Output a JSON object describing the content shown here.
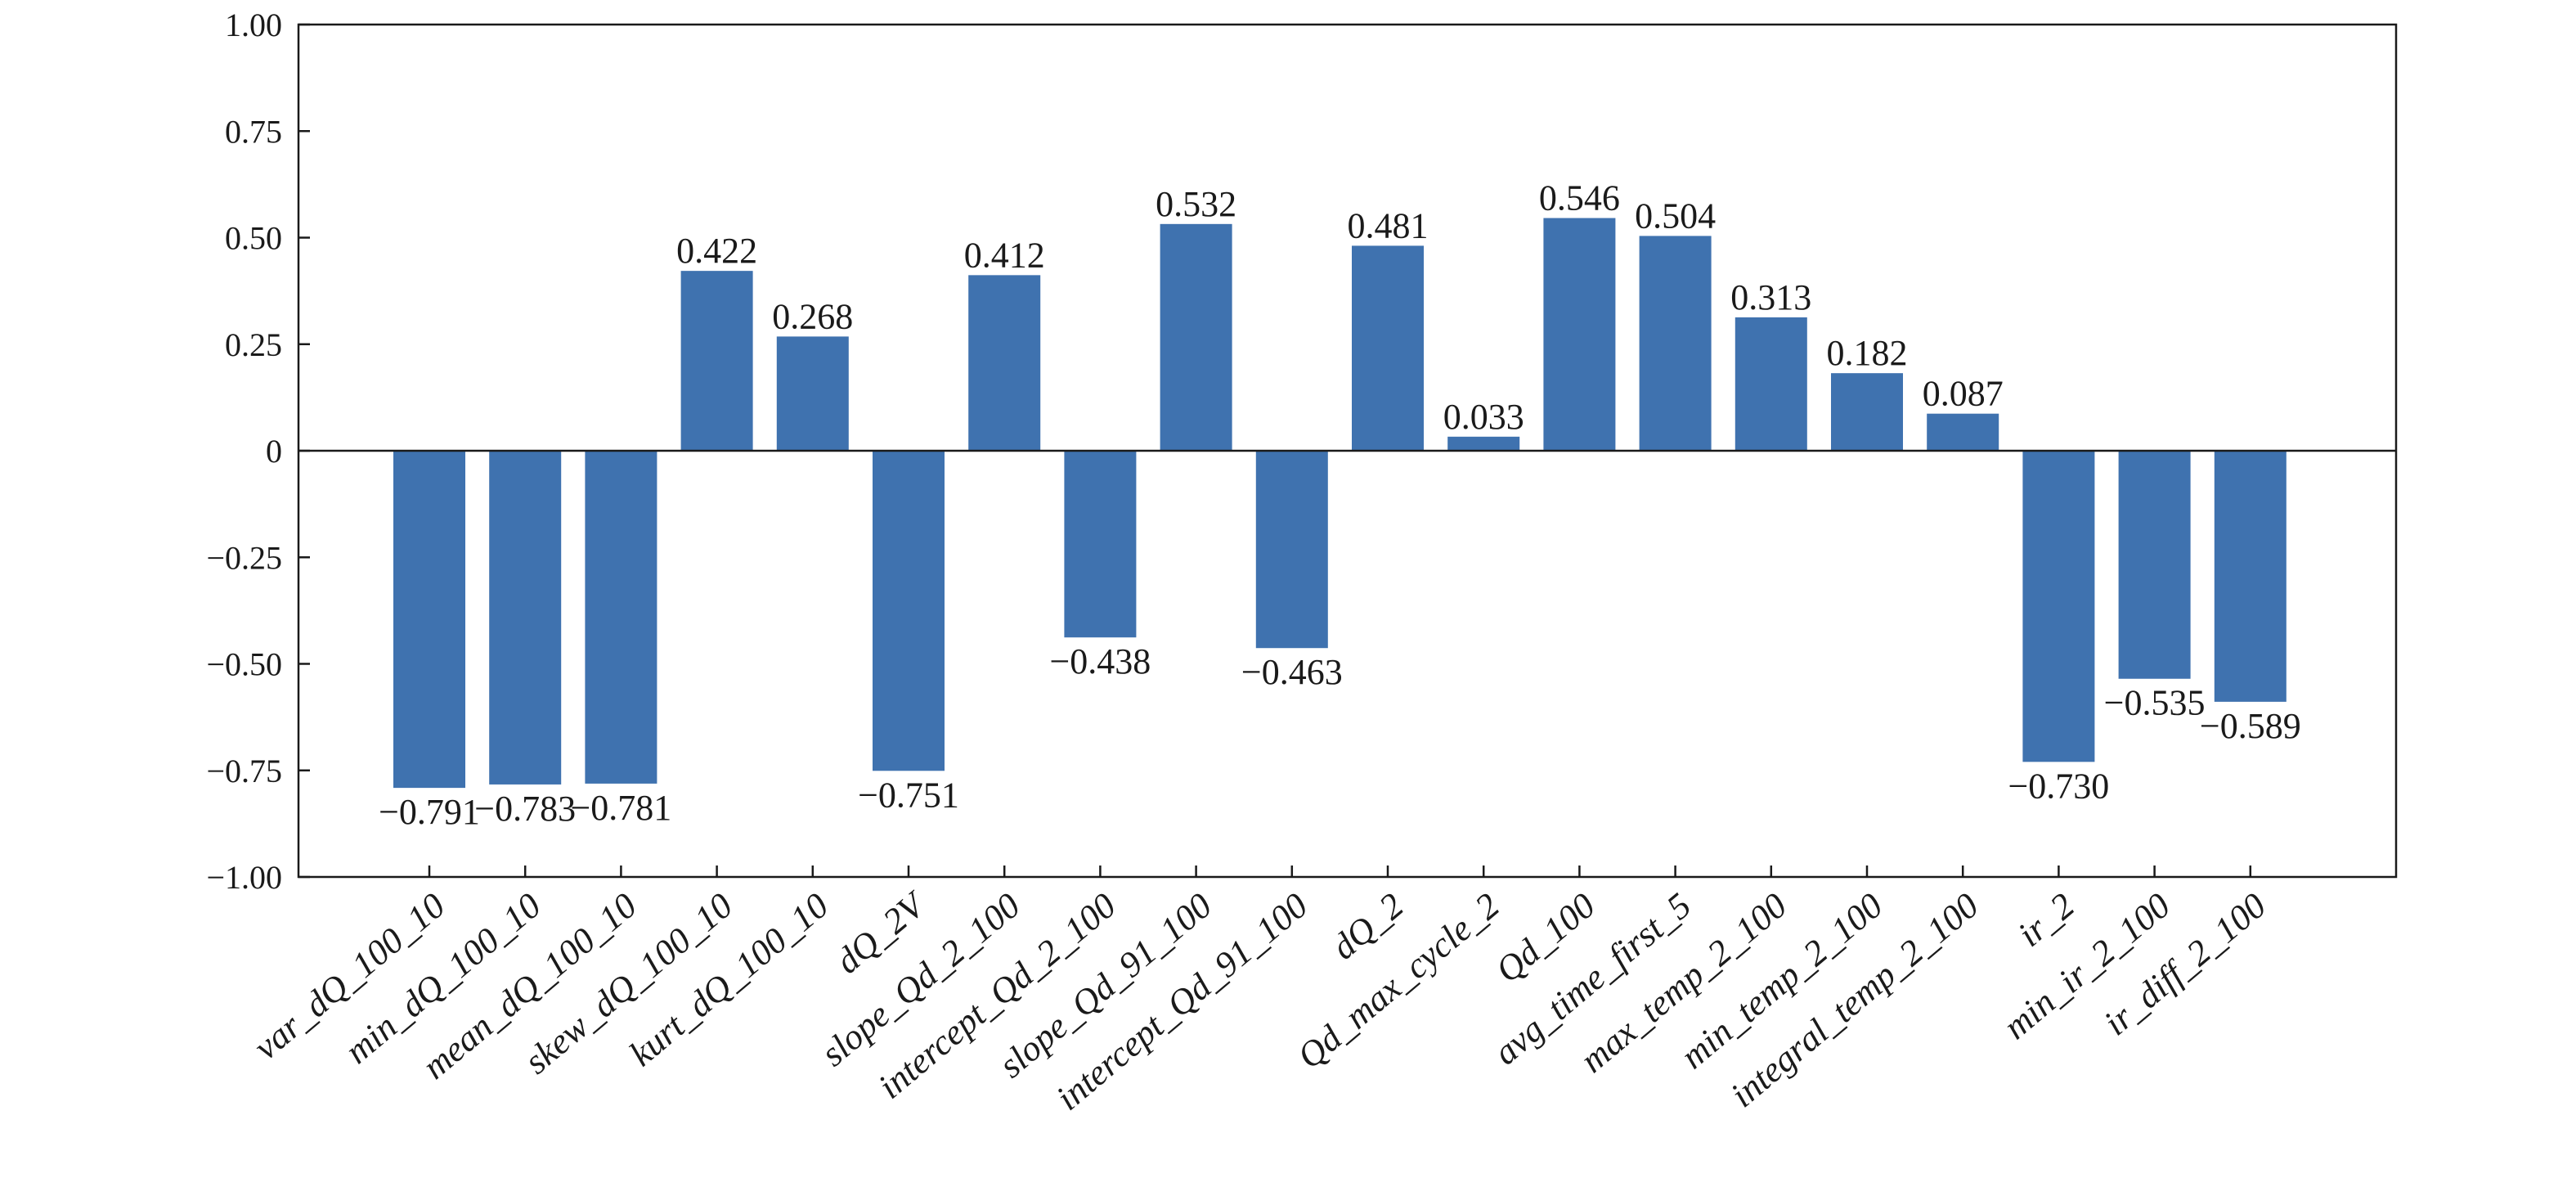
{
  "chart_data": {
    "type": "bar",
    "categories": [
      "var_dQ_100_10",
      "min_dQ_100_10",
      "mean_dQ_100_10",
      "skew_dQ_100_10",
      "kurt_dQ_100_10",
      "dQ_2V",
      "slope_Qd_2_100",
      "intercept_Qd_2_100",
      "slope_Qd_91_100",
      "intercept_Qd_91_100",
      "dQ_2",
      "Qd_max_cycle_2",
      "Qd_100",
      "avg_time_first_5",
      "max_temp_2_100",
      "min_temp_2_100",
      "integral_temp_2_100",
      "ir_2",
      "min_ir_2_100",
      "ir_diff_2_100"
    ],
    "values": [
      -0.791,
      -0.783,
      -0.781,
      0.422,
      0.268,
      -0.751,
      0.412,
      -0.438,
      0.532,
      -0.463,
      0.481,
      0.033,
      0.546,
      0.504,
      0.313,
      0.182,
      0.087,
      -0.73,
      -0.535,
      -0.589
    ],
    "value_labels": [
      "−0.791",
      "−0.783",
      "−0.781",
      "0.422",
      "0.268",
      "−0.751",
      "0.412",
      "−0.438",
      "0.532",
      "−0.463",
      "0.481",
      "0.033",
      "0.546",
      "0.504",
      "0.313",
      "0.182",
      "0.087",
      "−0.730",
      "−0.535",
      "−0.589"
    ],
    "y_ticks": [
      1.0,
      0.75,
      0.5,
      0.25,
      0,
      -0.25,
      -0.5,
      -0.75,
      -1.0
    ],
    "y_tick_labels": [
      "1.00",
      "0.75",
      "0.50",
      "0.25",
      "0",
      "−0.25",
      "−0.50",
      "−0.75",
      "−1.00"
    ],
    "ylim": [
      -1.0,
      1.0
    ],
    "title": "",
    "xlabel": "",
    "ylabel": "",
    "grid": false,
    "bar_color": "#3f72af",
    "axis_color": "#1a1a1a"
  }
}
